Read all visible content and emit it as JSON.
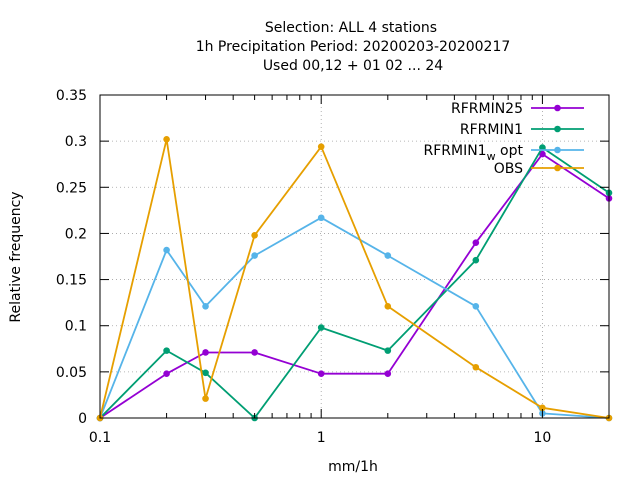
{
  "chart_data": {
    "type": "line",
    "title_lines": [
      "Selection: ALL      4 stations",
      "1h Precipitation  Period: 20200203-20200217",
      "Used  00,12  + 01 02 ... 24"
    ],
    "xlabel": "mm/1h",
    "ylabel": "Relative frequency",
    "x_scale": "log",
    "xlim": [
      0.1,
      20
    ],
    "ylim": [
      0,
      0.35
    ],
    "x_ticks": [
      0.1,
      1,
      10
    ],
    "x_tick_labels": [
      "0.1",
      "1",
      "10"
    ],
    "y_ticks": [
      0,
      0.05,
      0.1,
      0.15,
      0.2,
      0.25,
      0.3,
      0.35
    ],
    "y_tick_labels": [
      "0",
      "0.05",
      "0.1",
      "0.15",
      "0.2",
      "0.25",
      "0.3",
      "0.35"
    ],
    "grid": true,
    "legend_position": "top-right",
    "x": [
      0.1,
      0.2,
      0.3,
      0.5,
      1,
      2,
      5,
      10,
      20
    ],
    "series": [
      {
        "name": "RFRMIN25",
        "name_parts": [
          "RFRMIN25",
          "",
          ""
        ],
        "color": "#9400d3",
        "values": [
          0,
          0.048,
          0.071,
          0.071,
          0.048,
          0.048,
          0.19,
          0.286,
          0.238
        ]
      },
      {
        "name": "RFRMIN1",
        "name_parts": [
          "RFRMIN1",
          "",
          ""
        ],
        "color": "#009e73",
        "values": [
          0,
          0.073,
          0.049,
          0,
          0.098,
          0.073,
          0.171,
          0.293,
          0.244
        ]
      },
      {
        "name": "RFRMIN1_w opt",
        "name_parts": [
          "RFRMIN1",
          "w",
          " opt"
        ],
        "color": "#56b4e9",
        "values": [
          0,
          0.182,
          0.121,
          0.176,
          0.217,
          0.176,
          0.121,
          0.005,
          0
        ]
      },
      {
        "name": "OBS",
        "name_parts": [
          "OBS",
          "",
          ""
        ],
        "color": "#e69f00",
        "values": [
          0,
          0.302,
          0.021,
          0.198,
          0.294,
          0.121,
          0.055,
          0.011,
          0
        ]
      }
    ]
  }
}
